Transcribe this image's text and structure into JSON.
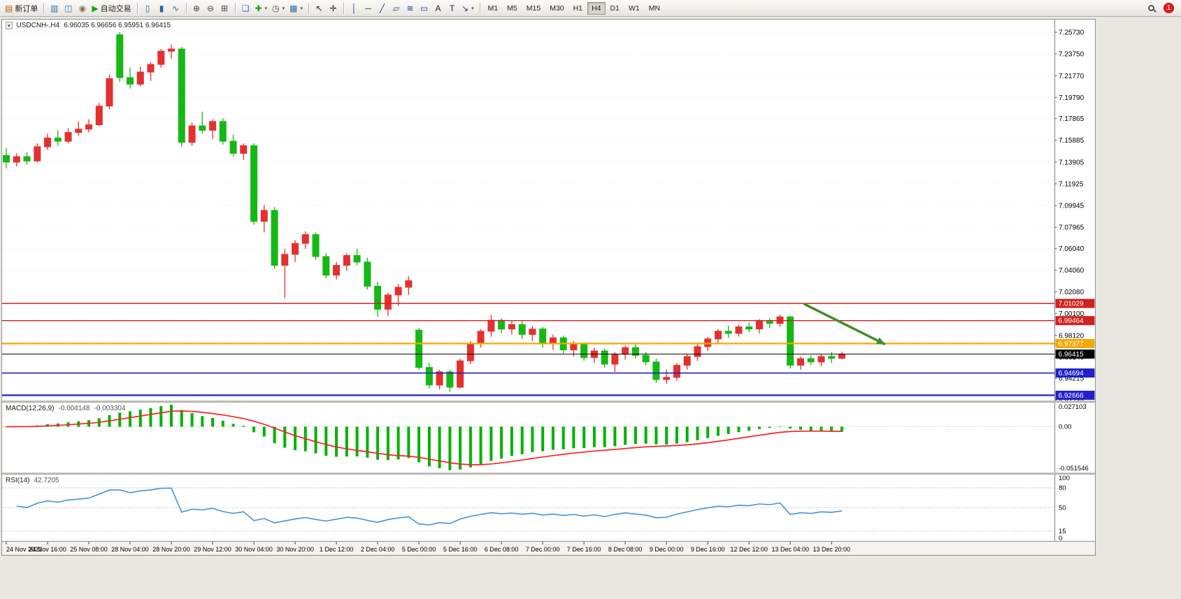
{
  "app": {
    "notification_badge": "1"
  },
  "toolbar": {
    "timeframes": [
      "M1",
      "M5",
      "M15",
      "M30",
      "H1",
      "H4",
      "D1",
      "W1",
      "MN"
    ],
    "active_timeframe": "H4",
    "items": [
      {
        "type": "labeled",
        "name": "new-order-button",
        "glyph": "▤",
        "glyph_color": "#b05c10",
        "label": "新订单"
      },
      {
        "type": "sep"
      },
      {
        "type": "icon",
        "name": "new-chart-icon",
        "glyph": "▥",
        "glyph_color": "#3a6ea5"
      },
      {
        "type": "icon",
        "name": "profiles-icon",
        "glyph": "◫",
        "glyph_color": "#3a6ea5"
      },
      {
        "type": "icon",
        "name": "market-watch-icon",
        "glyph": "◉",
        "glyph_color": "#8a7040"
      },
      {
        "type": "labeled",
        "name": "auto-trading-button",
        "glyph": "▶",
        "glyph_color": "#18a018",
        "label": "自动交易"
      },
      {
        "type": "sep"
      },
      {
        "type": "icon",
        "name": "bars-chart-icon",
        "glyph": "▯",
        "glyph_color": "#355f92"
      },
      {
        "type": "icon",
        "name": "candlestick-chart-icon",
        "glyph": "▮",
        "glyph_color": "#355f92"
      },
      {
        "type": "icon",
        "name": "line-chart-icon",
        "glyph": "∿",
        "glyph_color": "#355f92"
      },
      {
        "type": "sep"
      },
      {
        "type": "icon",
        "name": "zoom-in-icon",
        "glyph": "⊕",
        "glyph_color": "#444444"
      },
      {
        "type": "icon",
        "name": "zoom-out-icon",
        "glyph": "⊖",
        "glyph_color": "#444444"
      },
      {
        "type": "icon",
        "name": "grid-icon",
        "glyph": "⊞",
        "glyph_color": "#444444"
      },
      {
        "type": "sep"
      },
      {
        "type": "icon",
        "name": "tile-windows-icon",
        "glyph": "❏",
        "glyph_color": "#3a6ea5"
      },
      {
        "type": "icon",
        "name": "indicators-icon",
        "glyph": "✚",
        "glyph_color": "#18a018",
        "dropdown": true
      },
      {
        "type": "icon",
        "name": "periods-icon",
        "glyph": "◷",
        "glyph_color": "#444444",
        "dropdown": true
      },
      {
        "type": "icon",
        "name": "templates-icon",
        "glyph": "▩",
        "glyph_color": "#3a6ea5",
        "dropdown": true
      },
      {
        "type": "sep"
      },
      {
        "type": "icon",
        "name": "cursor-icon",
        "glyph": "↖",
        "glyph_color": "#222222"
      },
      {
        "type": "icon",
        "name": "crosshair-icon",
        "glyph": "✛",
        "glyph_color": "#222222"
      },
      {
        "type": "sep"
      },
      {
        "type": "icon",
        "name": "vertical-line-icon",
        "glyph": "│",
        "glyph_color": "#223a7a"
      },
      {
        "type": "icon",
        "name": "horizontal-line-icon",
        "glyph": "─",
        "glyph_color": "#223a7a"
      },
      {
        "type": "icon",
        "name": "trendline-icon",
        "glyph": "╱",
        "glyph_color": "#223a7a"
      },
      {
        "type": "icon",
        "name": "equidistant-channel-icon",
        "glyph": "▱",
        "glyph_color": "#223a7a"
      },
      {
        "type": "icon",
        "name": "fibonacci-icon",
        "glyph": "≋",
        "glyph_color": "#223a7a"
      },
      {
        "type": "icon",
        "name": "shapes-icon",
        "glyph": "▭",
        "glyph_color": "#223a7a"
      },
      {
        "type": "icon",
        "name": "text-icon",
        "glyph": "A",
        "glyph_color": "#222222"
      },
      {
        "type": "icon",
        "name": "label-icon",
        "glyph": "T",
        "glyph_color": "#222222"
      },
      {
        "type": "icon",
        "name": "arrows-tool-icon",
        "glyph": "↘",
        "glyph_color": "#223a7a",
        "dropdown": true
      },
      {
        "type": "sep"
      },
      {
        "type": "timeframes"
      }
    ]
  },
  "chart": {
    "title": "USDCNH-,H4",
    "ohlc": "6.96035 6.96656 6.95951 6.96415"
  },
  "chart_data": {
    "type": "candlestick",
    "symbol": "USDCNH-",
    "timeframe": "H4",
    "layout": {
      "right_shift": 310
    },
    "style": {
      "up_color": "#e53030",
      "down_color": "#15b815"
    },
    "price_axis": {
      "min": 6.9219,
      "max": 7.2688,
      "ticks": [
        {
          "v": 7.2573,
          "t": "7.25730"
        },
        {
          "v": 7.2375,
          "t": "7.23750"
        },
        {
          "v": 7.2177,
          "t": "7.21770"
        },
        {
          "v": 7.1979,
          "t": "7.19790"
        },
        {
          "v": 7.17865,
          "t": "7.17865"
        },
        {
          "v": 7.15885,
          "t": "7.15885"
        },
        {
          "v": 7.13905,
          "t": "7.13905"
        },
        {
          "v": 7.11925,
          "t": "7.11925"
        },
        {
          "v": 7.09945,
          "t": "7.09945"
        },
        {
          "v": 7.07965,
          "t": "7.07965"
        },
        {
          "v": 7.0604,
          "t": "7.06040"
        },
        {
          "v": 7.0406,
          "t": "7.04060"
        },
        {
          "v": 7.0208,
          "t": "7.02080"
        },
        {
          "v": 7.001,
          "t": "7.00100"
        },
        {
          "v": 6.9812,
          "t": "6.98120"
        },
        {
          "v": 6.9614,
          "t": "6.96140"
        },
        {
          "v": 6.94215,
          "t": "6.94215"
        },
        {
          "v": 6.92235,
          "t": "6.92235"
        }
      ]
    },
    "candles": [
      [
        7.145,
        7.152,
        7.133,
        7.139
      ],
      [
        7.139,
        7.147,
        7.135,
        7.144
      ],
      [
        7.144,
        7.148,
        7.137,
        7.14
      ],
      [
        7.14,
        7.156,
        7.139,
        7.153
      ],
      [
        7.153,
        7.165,
        7.15,
        7.161
      ],
      [
        7.161,
        7.168,
        7.154,
        7.158
      ],
      [
        7.158,
        7.17,
        7.156,
        7.166
      ],
      [
        7.166,
        7.176,
        7.163,
        7.169
      ],
      [
        7.169,
        7.178,
        7.166,
        7.173
      ],
      [
        7.173,
        7.193,
        7.172,
        7.19
      ],
      [
        7.19,
        7.219,
        7.187,
        7.215
      ],
      [
        7.255,
        7.2573,
        7.212,
        7.216
      ],
      [
        7.216,
        7.225,
        7.206,
        7.21
      ],
      [
        7.21,
        7.226,
        7.208,
        7.221
      ],
      [
        7.221,
        7.23,
        7.213,
        7.228
      ],
      [
        7.228,
        7.242,
        7.225,
        7.24
      ],
      [
        7.24,
        7.246,
        7.233,
        7.242
      ],
      [
        7.242,
        7.244,
        7.153,
        7.157
      ],
      [
        7.157,
        7.175,
        7.154,
        7.172
      ],
      [
        7.172,
        7.185,
        7.165,
        7.168
      ],
      [
        7.168,
        7.178,
        7.16,
        7.176
      ],
      [
        7.176,
        7.179,
        7.155,
        7.158
      ],
      [
        7.158,
        7.164,
        7.144,
        7.147
      ],
      [
        7.147,
        7.156,
        7.141,
        7.154
      ],
      [
        7.154,
        7.156,
        7.082,
        7.085
      ],
      [
        7.085,
        7.1,
        7.075,
        7.095
      ],
      [
        7.095,
        7.098,
        7.042,
        7.045
      ],
      [
        7.045,
        7.06,
        7.015,
        7.055
      ],
      [
        7.055,
        7.068,
        7.048,
        7.065
      ],
      [
        7.065,
        7.076,
        7.06,
        7.073
      ],
      [
        7.073,
        7.075,
        7.05,
        7.053
      ],
      [
        7.053,
        7.056,
        7.033,
        7.036
      ],
      [
        7.036,
        7.048,
        7.032,
        7.045
      ],
      [
        7.045,
        7.056,
        7.04,
        7.054
      ],
      [
        7.054,
        7.06,
        7.045,
        7.048
      ],
      [
        7.048,
        7.052,
        7.023,
        7.026
      ],
      [
        7.026,
        7.03,
        6.998,
        7.005
      ],
      [
        7.005,
        7.02,
        6.999,
        7.018
      ],
      [
        7.018,
        7.028,
        7.008,
        7.025
      ],
      [
        7.025,
        7.035,
        7.018,
        7.031
      ],
      [
        6.986,
        6.988,
        6.95,
        6.952
      ],
      [
        6.952,
        6.956,
        6.933,
        6.936
      ],
      [
        6.936,
        6.95,
        6.932,
        6.948
      ],
      [
        6.948,
        6.95,
        6.93,
        6.934
      ],
      [
        6.934,
        6.96,
        6.933,
        6.958
      ],
      [
        6.958,
        6.976,
        6.955,
        6.974
      ],
      [
        6.974,
        6.987,
        6.97,
        6.985
      ],
      [
        6.985,
        7.0,
        6.98,
        6.995
      ],
      [
        6.995,
        6.997,
        6.983,
        6.987
      ],
      [
        6.987,
        6.994,
        6.982,
        6.991
      ],
      [
        6.991,
        6.995,
        6.978,
        6.982
      ],
      [
        6.982,
        6.99,
        6.976,
        6.987
      ],
      [
        6.987,
        6.989,
        6.97,
        6.974
      ],
      [
        6.974,
        6.982,
        6.968,
        6.979
      ],
      [
        6.979,
        6.981,
        6.965,
        6.968
      ],
      [
        6.968,
        6.976,
        6.962,
        6.973
      ],
      [
        6.973,
        6.975,
        6.958,
        6.961
      ],
      [
        6.961,
        6.97,
        6.956,
        6.967
      ],
      [
        6.967,
        6.969,
        6.952,
        6.955
      ],
      [
        6.955,
        6.966,
        6.948,
        6.964
      ],
      [
        6.964,
        6.972,
        6.959,
        6.97
      ],
      [
        6.97,
        6.973,
        6.96,
        6.963
      ],
      [
        6.963,
        6.966,
        6.954,
        6.957
      ],
      [
        6.957,
        6.96,
        6.938,
        6.941
      ],
      [
        6.941,
        6.95,
        6.937,
        6.943
      ],
      [
        6.943,
        6.956,
        6.94,
        6.954
      ],
      [
        6.954,
        6.964,
        6.95,
        6.962
      ],
      [
        6.962,
        6.973,
        6.958,
        6.971
      ],
      [
        6.971,
        6.98,
        6.967,
        6.978
      ],
      [
        6.978,
        6.987,
        6.974,
        6.985
      ],
      [
        6.985,
        6.99,
        6.979,
        6.983
      ],
      [
        6.983,
        6.991,
        6.98,
        6.989
      ],
      [
        6.989,
        6.993,
        6.984,
        6.987
      ],
      [
        6.987,
        6.996,
        6.983,
        6.994
      ],
      [
        6.994,
        6.997,
        6.988,
        6.992
      ],
      [
        6.992,
        7.0,
        6.989,
        6.998
      ],
      [
        6.998,
        6.999,
        6.951,
        6.954
      ],
      [
        6.954,
        6.962,
        6.95,
        6.96
      ],
      [
        6.96,
        6.963,
        6.954,
        6.957
      ],
      [
        6.957,
        6.964,
        6.953,
        6.962
      ],
      [
        6.962,
        6.966,
        6.956,
        6.9603
      ],
      [
        6.96035,
        6.96656,
        6.95951,
        6.96415
      ]
    ],
    "time_labels": [
      {
        "i": 0,
        "t": "24 Nov 2022"
      },
      {
        "i": 4,
        "t": "24 Nov 16:00"
      },
      {
        "i": 8,
        "t": "25 Nov 08:00"
      },
      {
        "i": 12,
        "t": "28 Nov 04:00"
      },
      {
        "i": 16,
        "t": "28 Nov 20:00"
      },
      {
        "i": 20,
        "t": "29 Nov 12:00"
      },
      {
        "i": 24,
        "t": "30 Nov 04:00"
      },
      {
        "i": 28,
        "t": "30 Nov 20:00"
      },
      {
        "i": 32,
        "t": "1 Dec 12:00"
      },
      {
        "i": 36,
        "t": "2 Dec 04:00"
      },
      {
        "i": 40,
        "t": "5 Dec 00:00"
      },
      {
        "i": 44,
        "t": "5 Dec 16:00"
      },
      {
        "i": 48,
        "t": "6 Dec 08:00"
      },
      {
        "i": 52,
        "t": "7 Dec 00:00"
      },
      {
        "i": 56,
        "t": "7 Dec 16:00"
      },
      {
        "i": 60,
        "t": "8 Dec 08:00"
      },
      {
        "i": 64,
        "t": "9 Dec 00:00"
      },
      {
        "i": 68,
        "t": "9 Dec 16:00"
      },
      {
        "i": 72,
        "t": "12 Dec 12:00"
      },
      {
        "i": 76,
        "t": "13 Dec 04:00"
      },
      {
        "i": 80,
        "t": "13 Dec 20:00"
      }
    ],
    "hlines": [
      {
        "price": 7.01029,
        "label": "7.01029",
        "color": "#d02020",
        "width": 1.4
      },
      {
        "price": 6.99464,
        "label": "6.99464",
        "color": "#d02020",
        "width": 1.4
      },
      {
        "price": 6.97377,
        "label": "6.97377",
        "color": "#f5a800",
        "width": 2.2
      },
      {
        "price": 6.96415,
        "label": "6.96415",
        "color": "#000000",
        "width": 1.1
      },
      {
        "price": 6.94694,
        "label": "6.94694",
        "color": "#2020c8",
        "width": 1.6
      },
      {
        "price": 6.92666,
        "label": "6.92666",
        "color": "#2020c8",
        "width": 2.2
      }
    ],
    "arrow": {
      "i1": 77.3,
      "p1": 7.01,
      "i2": 85.2,
      "p2": 6.973,
      "color": "#3f8f28"
    },
    "macd": {
      "label": "MACD(12,26,9)",
      "value_main": "-0.004148",
      "value_signal": "-0.003304",
      "axis_top": "0.027103",
      "axis_zero": "0.00",
      "axis_bottom": "-0.051546",
      "max": 0.027103,
      "min": -0.051546,
      "histogram_color": "#00b200",
      "signal_color": "#ff2020"
    },
    "rsi": {
      "label": "RSI(14)",
      "value": "42.7205",
      "color": "#3f95d8",
      "period": 14,
      "axis_ticks": [
        {
          "v": 100,
          "t": "100"
        },
        {
          "v": 80,
          "t": "80"
        },
        {
          "v": 50,
          "t": "50"
        },
        {
          "v": 15,
          "t": "15"
        },
        {
          "v": 0,
          "t": "0"
        }
      ],
      "levels": [
        80,
        50,
        15
      ]
    }
  }
}
